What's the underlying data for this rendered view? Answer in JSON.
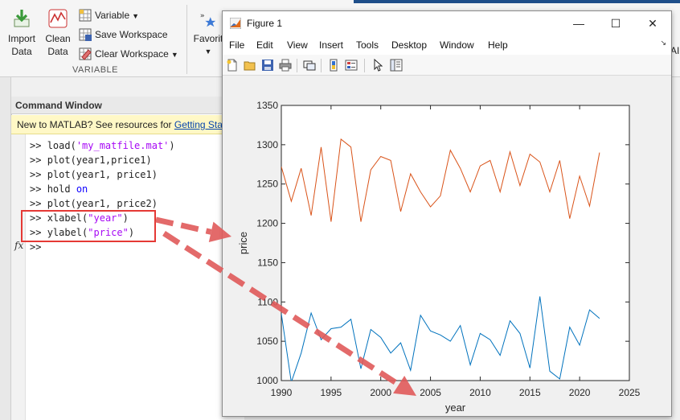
{
  "ribbon": {
    "import_label_1": "Import",
    "import_label_2": "Data",
    "clean_label_1": "Clean",
    "clean_label_2": "Data",
    "variable_label": "Variable",
    "save_ws_label": "Save Workspace",
    "clear_ws_label": "Clear Workspace",
    "group_label": "VARIABLE",
    "favorites_label": "Favorit",
    "right_edge_label": "AI",
    "icons": [
      "import-data-icon",
      "clean-data-icon",
      "variable-icon",
      "save-workspace-icon",
      "clear-workspace-icon",
      "favorites-icon",
      "chevron-down-icon"
    ]
  },
  "command_window": {
    "title": "Command Window",
    "tip_text": "New to MATLAB? See resources for ",
    "tip_link": "Getting Start",
    "prompt": ">>",
    "fx_glyph": "fx",
    "lines": [
      [
        {
          "t": "load(",
          "c": "n"
        },
        {
          "t": "'my_matfile.mat'",
          "c": "s"
        },
        {
          "t": ")",
          "c": "n"
        }
      ],
      [
        {
          "t": "plot(year1,price1)",
          "c": "n"
        }
      ],
      [
        {
          "t": "plot(year1, price1)",
          "c": "n"
        }
      ],
      [
        {
          "t": "hold ",
          "c": "n"
        },
        {
          "t": "on",
          "c": "k"
        }
      ],
      [
        {
          "t": "plot(year1, price2)",
          "c": "n"
        }
      ],
      [
        {
          "t": "xlabel(",
          "c": "n"
        },
        {
          "t": "\"year\"",
          "c": "s"
        },
        {
          "t": ")",
          "c": "n"
        }
      ],
      [
        {
          "t": "ylabel(",
          "c": "n"
        },
        {
          "t": "\"price\"",
          "c": "s"
        },
        {
          "t": ")",
          "c": "n"
        }
      ],
      []
    ],
    "highlight_color": "#e53935"
  },
  "figure": {
    "title": "Figure 1",
    "menu": [
      "File",
      "Edit",
      "View",
      "Insert",
      "Tools",
      "Desktop",
      "Window",
      "Help"
    ],
    "toolbar_icons": [
      "new-figure-icon",
      "open-file-icon",
      "save-icon",
      "print-icon",
      "link-icon",
      "colorbar-icon",
      "legend-icon",
      "pointer-icon",
      "property-inspector-icon"
    ],
    "minimize_glyph": "—",
    "maximize_glyph": "☐",
    "close_glyph": "✕"
  },
  "chart_data": {
    "type": "line",
    "xlabel": "year",
    "ylabel": "price",
    "xlim": [
      1990,
      2025
    ],
    "ylim": [
      1000,
      1350
    ],
    "xticks": [
      1990,
      1995,
      2000,
      2005,
      2010,
      2015,
      2020,
      2025
    ],
    "yticks": [
      1000,
      1050,
      1100,
      1150,
      1200,
      1250,
      1300,
      1350
    ],
    "grid": false,
    "x": [
      1990,
      1991,
      1992,
      1993,
      1994,
      1995,
      1996,
      1997,
      1998,
      1999,
      2000,
      2001,
      2002,
      2003,
      2004,
      2005,
      2006,
      2007,
      2008,
      2009,
      2010,
      2011,
      2012,
      2013,
      2014,
      2015,
      2016,
      2017,
      2018,
      2019,
      2020,
      2021,
      2022
    ],
    "series": [
      {
        "color": "#0072bd",
        "values": [
          1085,
          998,
          1035,
          1086,
          1052,
          1066,
          1068,
          1078,
          1015,
          1065,
          1055,
          1035,
          1048,
          1013,
          1083,
          1063,
          1058,
          1050,
          1070,
          1020,
          1060,
          1052,
          1032,
          1076,
          1060,
          1016,
          1107,
          1012,
          1002,
          1068,
          1045,
          1090,
          1079
        ]
      },
      {
        "color": "#d95319",
        "values": [
          1272,
          1228,
          1270,
          1210,
          1297,
          1202,
          1307,
          1297,
          1202,
          1268,
          1285,
          1280,
          1215,
          1263,
          1240,
          1221,
          1235,
          1293,
          1270,
          1240,
          1273,
          1280,
          1240,
          1291,
          1248,
          1288,
          1278,
          1240,
          1280,
          1206,
          1260,
          1222,
          1290
        ]
      }
    ]
  },
  "annotations": {
    "arrow_color": "#e05a5a"
  }
}
